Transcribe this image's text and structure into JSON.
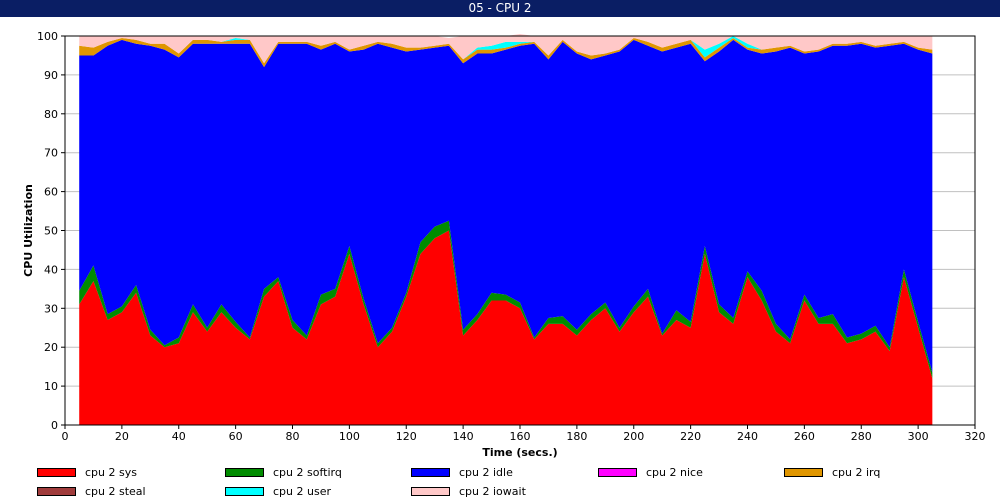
{
  "chart_data": {
    "type": "area",
    "title": "05 - CPU 2",
    "xlabel": "Time (secs.)",
    "ylabel": "CPU Utilization",
    "xlim": [
      0,
      320
    ],
    "ylim": [
      0,
      100
    ],
    "xticks": [
      0,
      20,
      40,
      60,
      80,
      100,
      120,
      140,
      160,
      180,
      200,
      220,
      240,
      260,
      280,
      300,
      320
    ],
    "yticks": [
      0,
      10,
      20,
      30,
      40,
      50,
      60,
      70,
      80,
      90,
      100
    ],
    "grid": "horizontal",
    "stacked": true,
    "legend_position": "bottom",
    "x": [
      5,
      10,
      15,
      20,
      25,
      30,
      35,
      40,
      45,
      50,
      55,
      60,
      65,
      70,
      75,
      80,
      85,
      90,
      95,
      100,
      105,
      110,
      115,
      120,
      125,
      130,
      135,
      140,
      145,
      150,
      155,
      160,
      165,
      170,
      175,
      180,
      185,
      190,
      195,
      200,
      205,
      210,
      215,
      220,
      225,
      230,
      235,
      240,
      245,
      250,
      255,
      260,
      265,
      270,
      275,
      280,
      285,
      290,
      295,
      300,
      305
    ],
    "series": [
      {
        "name": "cpu 2 sys",
        "color": "#ff0000",
        "values": [
          31,
          37,
          27,
          29,
          34,
          23,
          20,
          21,
          29,
          24,
          29,
          25,
          22,
          33,
          37,
          25,
          22,
          31,
          33,
          44,
          31,
          20,
          24,
          33,
          44,
          48,
          50,
          23,
          27,
          32,
          32,
          30,
          22,
          26,
          26,
          23,
          27,
          30,
          24,
          29,
          33,
          23,
          27,
          25,
          44,
          29,
          26,
          38,
          32,
          24,
          21,
          32,
          26,
          26,
          21,
          22,
          24,
          19,
          38,
          25,
          12
        ]
      },
      {
        "name": "cpu 2 softirq",
        "color": "#008c00",
        "values": [
          3.5,
          4,
          1.5,
          1.5,
          2,
          1.5,
          0.5,
          1.5,
          2,
          1,
          2,
          1.5,
          0.5,
          2,
          1,
          2,
          1,
          2.5,
          2,
          2,
          1.5,
          1,
          1,
          1,
          3,
          3,
          2.5,
          1.5,
          1.5,
          2,
          1.5,
          1.5,
          0.5,
          1.5,
          2,
          1.5,
          1.5,
          1.5,
          1,
          1.5,
          2,
          0.5,
          2.5,
          1.5,
          2,
          2,
          1.5,
          1.5,
          2.5,
          2,
          1,
          1.5,
          1.5,
          2.5,
          1.5,
          1.5,
          1.5,
          1,
          2,
          1.5,
          1.5
        ]
      },
      {
        "name": "cpu 2 idle",
        "color": "#0000ff",
        "values": [
          60.5,
          54,
          69,
          68.5,
          62,
          73,
          76,
          72,
          67,
          73,
          67,
          71.5,
          75.5,
          57,
          60,
          71,
          75,
          63,
          63,
          50,
          64,
          77,
          72,
          62,
          49.5,
          46,
          45,
          68.5,
          67,
          61.5,
          63,
          66,
          75.5,
          66.5,
          70.5,
          71,
          65.5,
          63.5,
          71,
          68.5,
          62.5,
          72.5,
          67.5,
          71.5,
          47.5,
          65,
          71.5,
          57,
          61,
          70,
          75,
          62,
          68.5,
          69,
          75,
          74.5,
          71.5,
          77.5,
          58,
          70,
          82
        ]
      },
      {
        "name": "cpu 2 nice",
        "color": "#ff00ff",
        "values": [
          0,
          0,
          0,
          0,
          0,
          0,
          0,
          0,
          0,
          0,
          0,
          0,
          0,
          0,
          0,
          0,
          0,
          0,
          0,
          0,
          0,
          0,
          0,
          0,
          0,
          0,
          0,
          0,
          0,
          0,
          0,
          0,
          0,
          0,
          0,
          0,
          0,
          0,
          0,
          0,
          0,
          0,
          0,
          0,
          0,
          0,
          0,
          0,
          0,
          0,
          0,
          0,
          0,
          0,
          0,
          0,
          0,
          0,
          0,
          0,
          0
        ]
      },
      {
        "name": "cpu 2 irq",
        "color": "#e09600",
        "values": [
          2.5,
          2,
          1,
          0.5,
          1,
          0.5,
          1.5,
          1,
          1,
          1,
          0.5,
          1,
          1,
          1,
          0.5,
          0.5,
          0.5,
          1,
          0.5,
          0.5,
          1,
          0.5,
          1,
          1,
          0.5,
          0.5,
          0.5,
          1,
          1,
          1,
          0.5,
          0.5,
          0.5,
          1,
          0.5,
          0.5,
          1,
          0.5,
          0.5,
          0.5,
          1,
          1,
          1,
          1,
          1,
          1,
          0.5,
          0.5,
          1,
          1,
          0.5,
          0.5,
          0.5,
          0.5,
          0.5,
          0.5,
          0.5,
          0.5,
          0.5,
          0.5,
          1
        ]
      },
      {
        "name": "cpu 2 steal",
        "color": "#a03c3c",
        "values": [
          0,
          0,
          0,
          0,
          0,
          0,
          0,
          0,
          0,
          0,
          0,
          0,
          0,
          0,
          0,
          0,
          0,
          0,
          0,
          0,
          0,
          0,
          0,
          0,
          0,
          0,
          0,
          0,
          0,
          0,
          0,
          0,
          0,
          0,
          0,
          0,
          0,
          0,
          0,
          0,
          0,
          0,
          0,
          0,
          0,
          0,
          0,
          0,
          0,
          0,
          0,
          0,
          0,
          0,
          0,
          0,
          0,
          0,
          0,
          0,
          0
        ]
      },
      {
        "name": "cpu 2 user",
        "color": "#00ffff",
        "values": [
          0,
          0,
          0,
          0,
          0,
          0,
          0,
          0,
          0,
          0,
          0,
          0.5,
          0,
          0,
          0,
          0,
          0,
          0,
          0,
          0,
          0,
          0,
          0,
          0,
          0,
          0,
          0,
          0,
          0.5,
          1,
          1.5,
          0.5,
          0,
          0,
          0,
          0,
          0,
          0,
          0,
          0,
          0,
          0,
          0,
          0,
          2,
          1,
          0.5,
          1,
          0,
          0,
          0,
          0,
          0,
          0,
          0,
          0,
          0,
          0,
          0,
          0,
          0
        ]
      },
      {
        "name": "cpu 2 iowait",
        "color": "#ffc8c8",
        "values": [
          2.5,
          3,
          1.5,
          0.5,
          1,
          2,
          2,
          4.5,
          1,
          1,
          1.5,
          0.5,
          1,
          7,
          1.5,
          1.5,
          1.5,
          2.5,
          1.5,
          3.5,
          2.5,
          1.5,
          2,
          3,
          3,
          2.5,
          1.5,
          6,
          3,
          2.5,
          1.5,
          2,
          1.5,
          5,
          1,
          4,
          5,
          4.5,
          3.5,
          0.5,
          1.5,
          3,
          2,
          1,
          3.5,
          2,
          0,
          2,
          3.5,
          3,
          2.5,
          4,
          3.5,
          2,
          2,
          1.5,
          2.5,
          2,
          1.5,
          3,
          3.5
        ]
      }
    ]
  }
}
